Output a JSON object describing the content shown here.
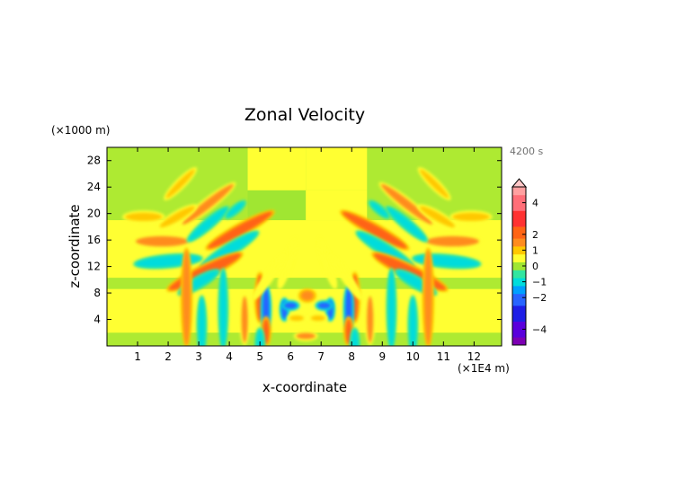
{
  "chart_data": {
    "type": "heatmap",
    "title": "Zonal Velocity",
    "xlabel": "x-coordinate",
    "ylabel": "z-coordinate",
    "x_unit": "(×1E4 m)",
    "y_unit": "(×1000 m)",
    "time_label": "4200 s",
    "xlim": [
      0,
      12.9
    ],
    "ylim": [
      0,
      30
    ],
    "x_ticks": [
      1,
      2,
      3,
      4,
      5,
      6,
      7,
      8,
      9,
      10,
      11,
      12
    ],
    "y_ticks": [
      4,
      8,
      12,
      16,
      20,
      24,
      28
    ],
    "colorbar": {
      "range": [
        -5,
        5
      ],
      "tick_values": [
        4,
        2,
        1,
        0,
        -1,
        -2,
        -4
      ],
      "colors": {
        "-5": "#7d00b4",
        "-4": "#5a00dc",
        "-3": "#1e1ee6",
        "-2": "#2864ff",
        "-1.5": "#00a0ff",
        "-1": "#00dcdc",
        "-0.5": "#32e6a0",
        "0": "#a0e632",
        "0.5": "#ffff32",
        "1": "#ffc800",
        "1.5": "#ff8c1e",
        "2": "#ff6414",
        "3": "#ff3232",
        "4": "#ff6e78",
        "5": "#ffa0a0"
      },
      "overflow_color": "#ffc8c8"
    },
    "features": [
      {
        "x": 4.35,
        "z": 17.5,
        "wx": 0.9,
        "wz": 2.3,
        "angle": 29,
        "value": 1.8
      },
      {
        "x": 4.0,
        "z": 14.5,
        "wx": 0.9,
        "wz": 2.0,
        "angle": 32,
        "value": -1.2
      },
      {
        "x": 3.2,
        "z": 11.2,
        "wx": 1.2,
        "wz": 2.5,
        "angle": 26,
        "value": 1.9
      },
      {
        "x": 2.0,
        "z": 12.8,
        "wx": 1.0,
        "wz": 2.0,
        "angle": 5,
        "value": -1.1
      },
      {
        "x": 1.8,
        "z": 15.8,
        "wx": 1.0,
        "wz": 1.6,
        "angle": 0,
        "value": 1.5
      },
      {
        "x": 3.3,
        "z": 21.4,
        "wx": 0.7,
        "wz": 2.0,
        "angle": 38,
        "value": 1.4
      },
      {
        "x": 3.3,
        "z": 18.4,
        "wx": 0.6,
        "wz": 1.5,
        "angle": 40,
        "value": -1.0
      },
      {
        "x": 2.3,
        "z": 19.5,
        "wx": 0.6,
        "wz": 1.2,
        "angle": 30,
        "value": 0.9
      },
      {
        "x": 1.2,
        "z": 19.5,
        "wx": 0.7,
        "wz": 1.1,
        "angle": 0,
        "value": 0.8
      },
      {
        "x": 2.4,
        "z": 24.5,
        "wx": 0.4,
        "wz": 1.2,
        "angle": 45,
        "value": 0.9
      },
      {
        "x": 3.0,
        "z": 9.6,
        "wx": 0.8,
        "wz": 1.3,
        "angle": 30,
        "value": -0.9
      },
      {
        "x": 2.6,
        "z": 7.3,
        "wx": 0.6,
        "wz": 3.0,
        "angle": 90,
        "value": 1.7
      },
      {
        "x": 5.0,
        "z": 7.3,
        "wx": 0.5,
        "wz": 1.4,
        "angle": 90,
        "value": 1.8
      },
      {
        "x": 3.8,
        "z": 5.6,
        "wx": 0.4,
        "wz": 2.4,
        "angle": 90,
        "value": -0.9
      },
      {
        "x": 5.2,
        "z": 5.6,
        "wx": 0.45,
        "wz": 1.3,
        "angle": 90,
        "value": -1.8
      },
      {
        "x": 5.8,
        "z": 5.5,
        "wx": 0.3,
        "wz": 0.5,
        "angle": 90,
        "value": -2.0
      },
      {
        "x": 4.5,
        "z": 4.0,
        "wx": 0.4,
        "wz": 1.4,
        "angle": 90,
        "value": 1.5
      },
      {
        "x": 3.1,
        "z": 3.1,
        "wx": 0.4,
        "wz": 1.7,
        "angle": 90,
        "value": -0.8
      },
      {
        "x": 5.2,
        "z": 2.2,
        "wx": 0.4,
        "wz": 0.7,
        "angle": 90,
        "value": 1.8
      },
      {
        "x": 5.0,
        "z": 0.3,
        "wx": 0.4,
        "wz": 0.8,
        "angle": 90,
        "value": -1.1
      },
      {
        "x": 5.9,
        "z": 12.5,
        "wx": 0.35,
        "wz": 1.5,
        "angle": 72,
        "value": 0.6
      },
      {
        "x": 5.3,
        "z": 10.5,
        "wx": 0.35,
        "wz": 1.6,
        "angle": 55,
        "value": 0.7
      },
      {
        "x": 4.2,
        "z": 20.6,
        "wx": 0.25,
        "wz": 0.6,
        "angle": 40,
        "value": -0.8
      },
      {
        "x": 8.75,
        "z": 17.5,
        "wx": 0.9,
        "wz": 2.3,
        "angle": -29,
        "value": 1.8
      },
      {
        "x": 9.1,
        "z": 14.5,
        "wx": 0.9,
        "wz": 2.0,
        "angle": -32,
        "value": -1.2
      },
      {
        "x": 9.9,
        "z": 11.2,
        "wx": 1.2,
        "wz": 2.5,
        "angle": -26,
        "value": 1.9
      },
      {
        "x": 11.1,
        "z": 12.8,
        "wx": 1.0,
        "wz": 2.0,
        "angle": -5,
        "value": -1.1
      },
      {
        "x": 11.3,
        "z": 15.8,
        "wx": 1.0,
        "wz": 1.6,
        "angle": 0,
        "value": 1.5
      },
      {
        "x": 9.8,
        "z": 21.4,
        "wx": 0.7,
        "wz": 2.0,
        "angle": -38,
        "value": 1.4
      },
      {
        "x": 9.8,
        "z": 18.4,
        "wx": 0.6,
        "wz": 1.5,
        "angle": -40,
        "value": -1.0
      },
      {
        "x": 10.8,
        "z": 19.5,
        "wx": 0.6,
        "wz": 1.2,
        "angle": -30,
        "value": 0.9
      },
      {
        "x": 11.9,
        "z": 19.5,
        "wx": 0.7,
        "wz": 1.1,
        "angle": 0,
        "value": 0.8
      },
      {
        "x": 10.7,
        "z": 24.5,
        "wx": 0.4,
        "wz": 1.2,
        "angle": -45,
        "value": 0.9
      },
      {
        "x": 10.1,
        "z": 9.6,
        "wx": 0.8,
        "wz": 1.3,
        "angle": -30,
        "value": -0.9
      },
      {
        "x": 10.5,
        "z": 7.3,
        "wx": 0.6,
        "wz": 3.0,
        "angle": 90,
        "value": 1.7
      },
      {
        "x": 8.1,
        "z": 7.3,
        "wx": 0.5,
        "wz": 1.4,
        "angle": 90,
        "value": 1.8
      },
      {
        "x": 9.3,
        "z": 5.6,
        "wx": 0.4,
        "wz": 2.4,
        "angle": 90,
        "value": -0.9
      },
      {
        "x": 7.9,
        "z": 5.6,
        "wx": 0.45,
        "wz": 1.3,
        "angle": 90,
        "value": -1.8
      },
      {
        "x": 7.3,
        "z": 5.5,
        "wx": 0.3,
        "wz": 0.5,
        "angle": 90,
        "value": -2.0
      },
      {
        "x": 8.6,
        "z": 4.0,
        "wx": 0.4,
        "wz": 1.4,
        "angle": 90,
        "value": 1.5
      },
      {
        "x": 10.0,
        "z": 3.1,
        "wx": 0.4,
        "wz": 1.7,
        "angle": 90,
        "value": -0.8
      },
      {
        "x": 7.9,
        "z": 2.2,
        "wx": 0.4,
        "wz": 0.7,
        "angle": 90,
        "value": 1.8
      },
      {
        "x": 8.1,
        "z": 0.3,
        "wx": 0.4,
        "wz": 0.8,
        "angle": 90,
        "value": -1.1
      },
      {
        "x": 7.2,
        "z": 12.5,
        "wx": 0.35,
        "wz": 1.5,
        "angle": -72,
        "value": 0.6
      },
      {
        "x": 7.8,
        "z": 10.5,
        "wx": 0.35,
        "wz": 1.6,
        "angle": -55,
        "value": 0.7
      },
      {
        "x": 8.9,
        "z": 20.6,
        "wx": 0.25,
        "wz": 0.6,
        "angle": -40,
        "value": -0.8
      },
      {
        "x": 6.55,
        "z": 7.6,
        "wx": 0.9,
        "wz": 0.3,
        "angle": 0,
        "value": 1.6
      },
      {
        "x": 6.0,
        "z": 6.1,
        "wx": 0.35,
        "wz": 0.3,
        "angle": 0,
        "value": -1.9
      },
      {
        "x": 7.1,
        "z": 6.1,
        "wx": 0.35,
        "wz": 0.3,
        "angle": 0,
        "value": -1.9
      },
      {
        "x": 6.2,
        "z": 4.2,
        "wx": 0.3,
        "wz": 0.35,
        "angle": 0,
        "value": 1.1
      },
      {
        "x": 6.9,
        "z": 4.2,
        "wx": 0.3,
        "wz": 0.35,
        "angle": 0,
        "value": 1.1
      },
      {
        "x": 6.5,
        "z": 1.5,
        "wx": 0.4,
        "wz": 0.5,
        "angle": 0,
        "value": 1.3
      }
    ]
  }
}
